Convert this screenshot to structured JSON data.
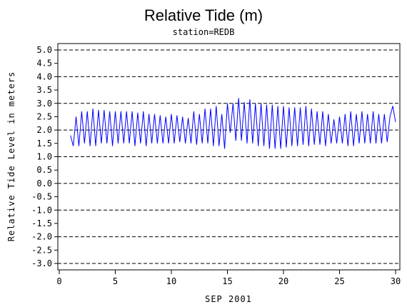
{
  "chart_data": {
    "type": "line",
    "title": "Relative Tide (m)",
    "subtitle": "station=REDB",
    "xlabel": "SEP 2001",
    "ylabel": "Relative Tide Level in meters",
    "xlim": [
      0,
      30
    ],
    "ylim": [
      -3.0,
      5.0
    ],
    "x_ticks": [
      0,
      5,
      10,
      15,
      20,
      25,
      30
    ],
    "y_ticks": [
      "5.0",
      "4.5",
      "4.0",
      "3.5",
      "3.0",
      "2.5",
      "2.0",
      "1.5",
      "1.0",
      "0.5",
      "0.0",
      "-0.5",
      "-1.0",
      "-1.5",
      "-2.0",
      "-2.5",
      "-3.0"
    ],
    "gridlines_y": [
      5,
      4,
      3,
      2,
      1,
      0,
      -1,
      -2,
      -3
    ],
    "grid": "horizontal dashed",
    "series_color": "#0000ff",
    "series": [
      {
        "values": [
          [
            1.0,
            1.8
          ],
          [
            1.25,
            1.4
          ],
          [
            1.5,
            2.5
          ],
          [
            1.75,
            1.4
          ],
          [
            2.0,
            2.7
          ],
          [
            2.25,
            1.5
          ],
          [
            2.5,
            2.7
          ],
          [
            2.75,
            1.4
          ],
          [
            3.0,
            2.8
          ],
          [
            3.25,
            1.4
          ],
          [
            3.5,
            2.75
          ],
          [
            3.75,
            1.5
          ],
          [
            4.0,
            2.75
          ],
          [
            4.25,
            1.5
          ],
          [
            4.5,
            2.7
          ],
          [
            4.75,
            1.4
          ],
          [
            5.0,
            2.7
          ],
          [
            5.25,
            1.5
          ],
          [
            5.5,
            2.7
          ],
          [
            5.75,
            1.5
          ],
          [
            6.0,
            2.7
          ],
          [
            6.25,
            1.5
          ],
          [
            6.5,
            2.7
          ],
          [
            6.75,
            1.4
          ],
          [
            7.0,
            2.65
          ],
          [
            7.25,
            1.5
          ],
          [
            7.5,
            2.7
          ],
          [
            7.75,
            1.4
          ],
          [
            8.0,
            2.6
          ],
          [
            8.25,
            1.5
          ],
          [
            8.5,
            2.6
          ],
          [
            8.75,
            1.5
          ],
          [
            9.0,
            2.55
          ],
          [
            9.25,
            1.5
          ],
          [
            9.5,
            2.5
          ],
          [
            9.75,
            1.5
          ],
          [
            10.0,
            2.6
          ],
          [
            10.25,
            1.5
          ],
          [
            10.5,
            2.55
          ],
          [
            10.75,
            1.55
          ],
          [
            11.0,
            2.5
          ],
          [
            11.25,
            1.5
          ],
          [
            11.5,
            2.45
          ],
          [
            11.75,
            1.5
          ],
          [
            12.0,
            2.7
          ],
          [
            12.25,
            1.45
          ],
          [
            12.5,
            2.6
          ],
          [
            12.75,
            1.5
          ],
          [
            13.0,
            2.8
          ],
          [
            13.25,
            1.5
          ],
          [
            13.5,
            2.8
          ],
          [
            13.75,
            1.4
          ],
          [
            14.0,
            2.9
          ],
          [
            14.25,
            1.4
          ],
          [
            14.5,
            2.6
          ],
          [
            14.75,
            1.3
          ],
          [
            15.0,
            3.0
          ],
          [
            15.25,
            1.9
          ],
          [
            15.5,
            3.0
          ],
          [
            15.75,
            1.6
          ],
          [
            16.0,
            3.2
          ],
          [
            16.25,
            1.6
          ],
          [
            16.5,
            3.05
          ],
          [
            16.75,
            1.5
          ],
          [
            17.0,
            3.15
          ],
          [
            17.25,
            1.5
          ],
          [
            17.5,
            3.0
          ],
          [
            17.75,
            1.4
          ],
          [
            18.0,
            3.0
          ],
          [
            18.25,
            1.4
          ],
          [
            18.5,
            2.95
          ],
          [
            18.75,
            1.3
          ],
          [
            19.0,
            2.95
          ],
          [
            19.25,
            1.3
          ],
          [
            19.5,
            2.9
          ],
          [
            19.75,
            1.3
          ],
          [
            20.0,
            2.9
          ],
          [
            20.25,
            1.35
          ],
          [
            20.5,
            2.85
          ],
          [
            20.75,
            1.4
          ],
          [
            21.0,
            2.85
          ],
          [
            21.25,
            1.4
          ],
          [
            21.5,
            2.85
          ],
          [
            21.75,
            1.45
          ],
          [
            22.0,
            2.9
          ],
          [
            22.25,
            1.4
          ],
          [
            22.5,
            2.8
          ],
          [
            22.75,
            1.45
          ],
          [
            23.0,
            2.7
          ],
          [
            23.25,
            1.45
          ],
          [
            23.5,
            2.7
          ],
          [
            23.75,
            1.4
          ],
          [
            24.0,
            2.6
          ],
          [
            24.25,
            1.5
          ],
          [
            24.5,
            2.4
          ],
          [
            24.75,
            1.5
          ],
          [
            25.0,
            2.5
          ],
          [
            25.25,
            1.5
          ],
          [
            25.5,
            2.6
          ],
          [
            25.75,
            1.4
          ],
          [
            26.0,
            2.7
          ],
          [
            26.25,
            1.4
          ],
          [
            26.5,
            2.6
          ],
          [
            26.75,
            1.5
          ],
          [
            27.0,
            2.7
          ],
          [
            27.25,
            1.5
          ],
          [
            27.5,
            2.6
          ],
          [
            27.75,
            1.5
          ],
          [
            28.0,
            2.7
          ],
          [
            28.25,
            1.5
          ],
          [
            28.5,
            2.6
          ],
          [
            28.75,
            1.5
          ],
          [
            29.0,
            2.6
          ],
          [
            29.25,
            1.55
          ],
          [
            29.5,
            2.5
          ],
          [
            29.75,
            2.9
          ],
          [
            30.0,
            2.3
          ]
        ]
      }
    ]
  }
}
